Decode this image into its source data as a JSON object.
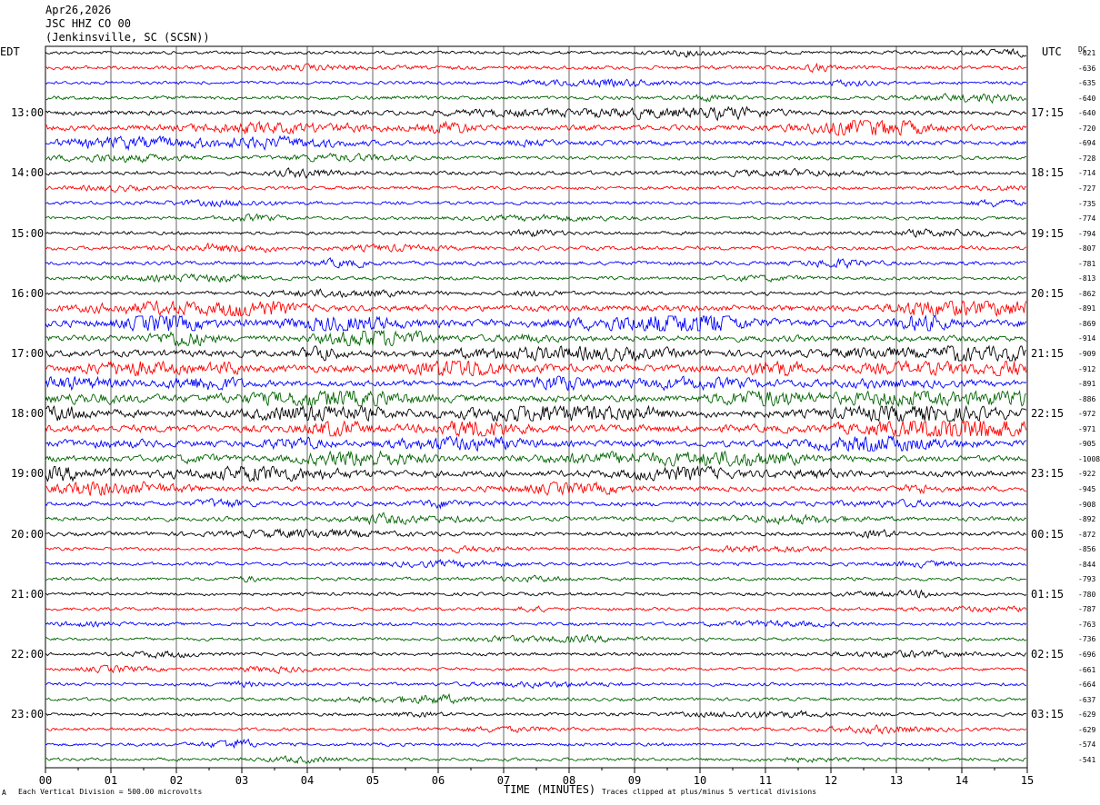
{
  "header": {
    "date": "Apr26,2026",
    "station": "JSC HHZ CO 00",
    "location": "(Jenkinsville, SC (SCSN))"
  },
  "left_tz": "EDT",
  "right_tz": "UTC",
  "dc_label": "DC",
  "footer": {
    "xlabel": "TIME (MINUTES)",
    "scale_note": "Each Vertical Division =  500.00 microvolts",
    "clip_note": "Traces clipped at plus/minus 5 vertical divisions",
    "corner_mark": "A"
  },
  "chart_data": {
    "type": "line",
    "title": "JSC HHZ CO 00",
    "xlabel": "TIME (MINUTES)",
    "xlim": [
      0,
      15
    ],
    "x_ticks": [
      "00",
      "01",
      "02",
      "03",
      "04",
      "05",
      "06",
      "07",
      "08",
      "09",
      "10",
      "11",
      "12",
      "13",
      "14",
      "15"
    ],
    "left_hour_labels": [
      "13:00",
      "14:00",
      "15:00",
      "16:00",
      "17:00",
      "18:00",
      "19:00",
      "20:00",
      "21:00",
      "22:00",
      "23:00"
    ],
    "right_hour_labels": [
      "17:15",
      "18:15",
      "19:15",
      "20:15",
      "21:15",
      "22:15",
      "23:15",
      "00:15",
      "01:15",
      "02:15",
      "03:15"
    ],
    "trace_colors": [
      "#000000",
      "#ff0000",
      "#0000ff",
      "#006400"
    ],
    "trace_count": 48,
    "dc_offsets": [
      -621,
      -636,
      -635,
      -640,
      -640,
      -720,
      -694,
      -728,
      -714,
      -727,
      -735,
      -774,
      -794,
      -807,
      -781,
      -813,
      -862,
      -891,
      -869,
      -914,
      -909,
      -912,
      -891,
      -886,
      -972,
      -971,
      -905,
      -1008,
      -922,
      -945,
      -908,
      -892,
      -872,
      -856,
      -844,
      -793,
      -780,
      -787,
      -763,
      -736,
      -696,
      -661,
      -664,
      -637,
      -629,
      -629,
      -574,
      -541
    ],
    "trace_activity": [
      1,
      1.6,
      1,
      1.4,
      2.2,
      3,
      2.2,
      1.4,
      1.6,
      1.2,
      1,
      1,
      1.2,
      1.6,
      1.6,
      1.2,
      1.3,
      3.4,
      4.6,
      3.4,
      4,
      4.4,
      3.6,
      4,
      4.6,
      4.6,
      3.6,
      3.6,
      3.4,
      2.6,
      2.2,
      2,
      1.6,
      1,
      1.1,
      1.1,
      1,
      1,
      1,
      1,
      1,
      1,
      1,
      1,
      1,
      1,
      1,
      1
    ]
  }
}
